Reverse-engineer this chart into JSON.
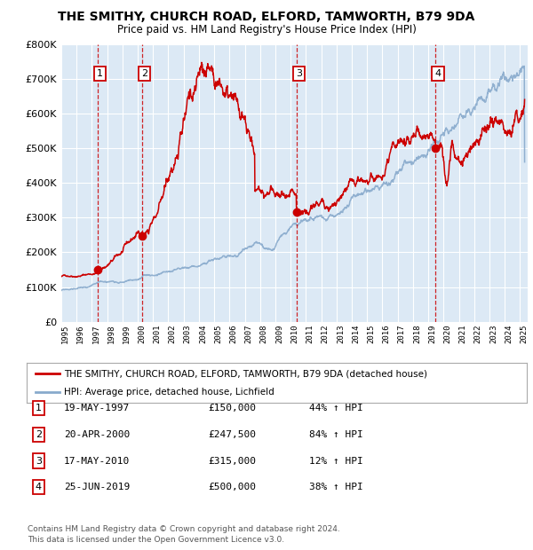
{
  "title1": "THE SMITHY, CHURCH ROAD, ELFORD, TAMWORTH, B79 9DA",
  "title2": "Price paid vs. HM Land Registry's House Price Index (HPI)",
  "legend_red": "THE SMITHY, CHURCH ROAD, ELFORD, TAMWORTH, B79 9DA (detached house)",
  "legend_blue": "HPI: Average price, detached house, Lichfield",
  "footer1": "Contains HM Land Registry data © Crown copyright and database right 2024.",
  "footer2": "This data is licensed under the Open Government Licence v3.0.",
  "purchases": [
    {
      "num": 1,
      "date": 1997.38,
      "price": 150000,
      "label": "19-MAY-1997",
      "price_str": "£150,000",
      "pct": "44% ↑ HPI"
    },
    {
      "num": 2,
      "date": 2000.3,
      "price": 247500,
      "label": "20-APR-2000",
      "price_str": "£247,500",
      "pct": "84% ↑ HPI"
    },
    {
      "num": 3,
      "date": 2010.38,
      "price": 315000,
      "label": "17-MAY-2010",
      "price_str": "£315,000",
      "pct": "12% ↑ HPI"
    },
    {
      "num": 4,
      "date": 2019.48,
      "price": 500000,
      "label": "25-JUN-2019",
      "price_str": "£500,000",
      "pct": "38% ↑ HPI"
    }
  ],
  "ylim": [
    0,
    800000
  ],
  "xlim_start": 1995.0,
  "xlim_end": 2025.5,
  "bg_color": "#dce9f5",
  "grid_color": "#ffffff",
  "red_color": "#cc0000",
  "blue_color": "#88aacc",
  "dashed_color": "#cc0000"
}
